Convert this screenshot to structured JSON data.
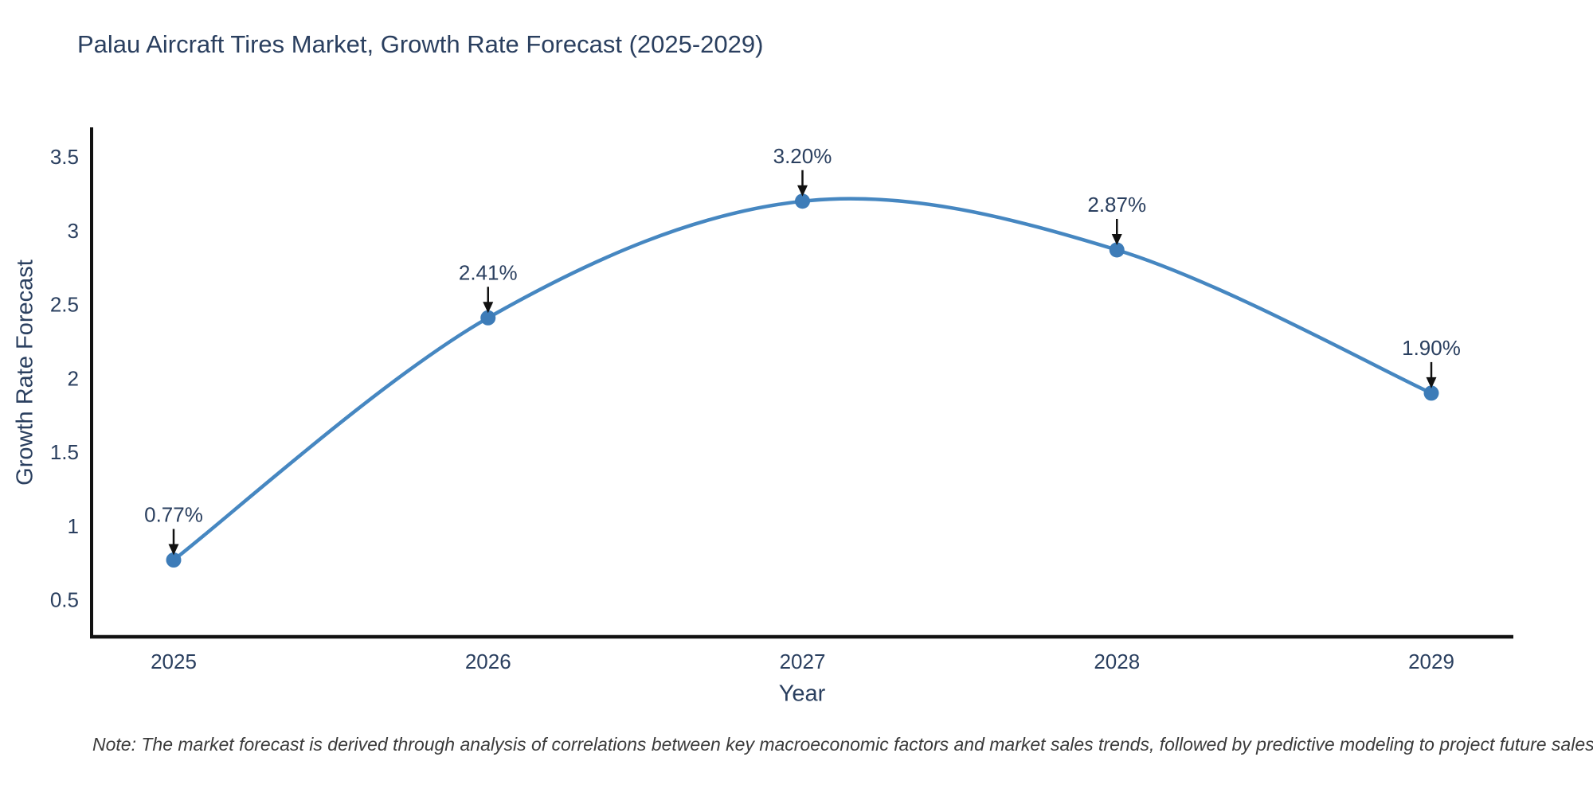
{
  "chart_data": {
    "type": "line",
    "line_shape": "spline",
    "title": "Palau Aircraft Tires Market, Growth Rate Forecast (2025-2029)",
    "xlabel": "Year",
    "ylabel": "Growth Rate Forecast",
    "x": [
      2025,
      2026,
      2027,
      2028,
      2029
    ],
    "y": [
      0.77,
      2.41,
      3.2,
      2.87,
      1.9
    ],
    "point_labels": [
      "0.77%",
      "2.41%",
      "3.20%",
      "2.87%",
      "1.90%"
    ],
    "yticks": [
      0.5,
      1,
      1.5,
      2,
      2.5,
      3,
      3.5
    ],
    "ylim": [
      0.25,
      3.7
    ],
    "grid": false,
    "legend": "none",
    "colors": {
      "line": "#4687c1",
      "marker": "#3d7cb8",
      "axis": "#111111",
      "arrow": "#111111",
      "text": "#2a3f5f",
      "background": "#ffffff"
    }
  },
  "footnote": "Note: The market forecast is derived through analysis of correlations between key macroeconomic factors and market sales trends, followed by predictive modeling to project future sales."
}
